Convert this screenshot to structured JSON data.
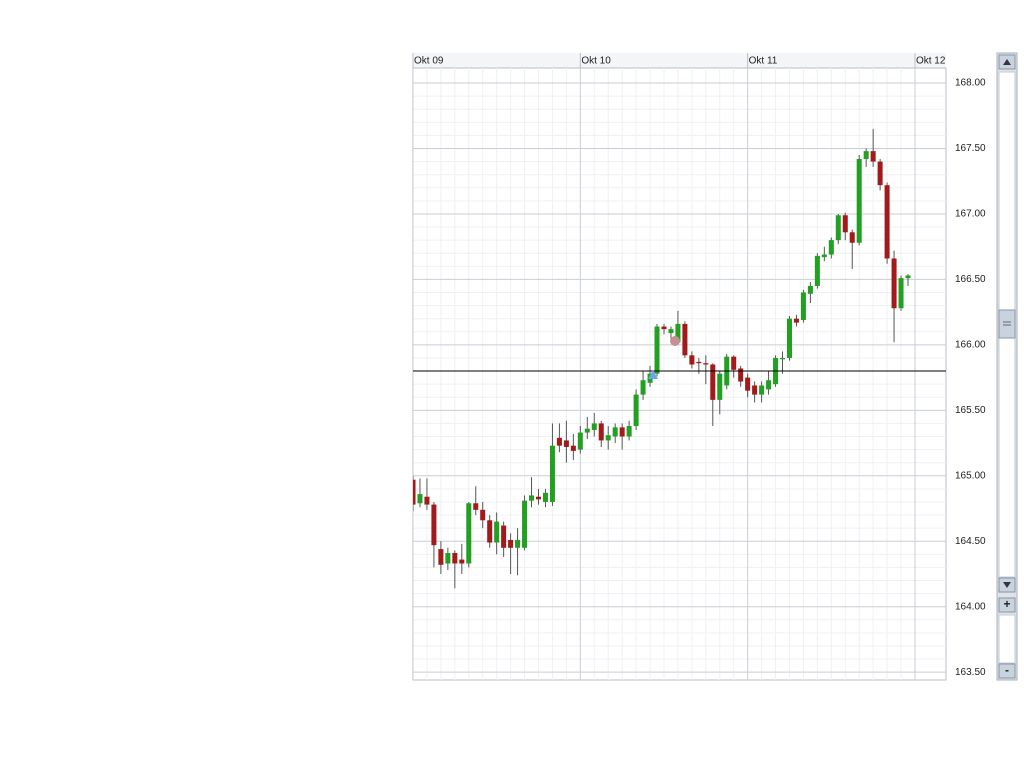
{
  "chart_data": {
    "type": "candlestick",
    "x": [
      0,
      1,
      2,
      3,
      4,
      5,
      6,
      7,
      8,
      9,
      10,
      11,
      12,
      13,
      14,
      15,
      16,
      17,
      18,
      19,
      20,
      21,
      22,
      23,
      24,
      25,
      26,
      27,
      28,
      29,
      30,
      31,
      32,
      33,
      34,
      35,
      36,
      37,
      38,
      39,
      40,
      41,
      42,
      43,
      44,
      45,
      46,
      47,
      48,
      49,
      50,
      51,
      52,
      53,
      54,
      55,
      56,
      57,
      58,
      59,
      60,
      61,
      62,
      63,
      64,
      65,
      66,
      67,
      68,
      69,
      70,
      71
    ],
    "xlim": [
      0,
      76.45
    ],
    "xticks": [
      {
        "value": 0,
        "label": "Okt 09"
      },
      {
        "value": 24,
        "label": "Okt 10"
      },
      {
        "value": 48,
        "label": "Okt 11"
      },
      {
        "value": 72,
        "label": "Okt 12"
      }
    ],
    "ylim": [
      163.44,
      168.115
    ],
    "yticks": [
      {
        "value": 163.5,
        "label": "163.50"
      },
      {
        "value": 164,
        "label": "164.00"
      },
      {
        "value": 164.5,
        "label": "164.50"
      },
      {
        "value": 165,
        "label": "165.00"
      },
      {
        "value": 165.5,
        "label": "165.50"
      },
      {
        "value": 166,
        "label": "166.00"
      },
      {
        "value": 166.5,
        "label": "166.50"
      },
      {
        "value": 167,
        "label": "167.00"
      },
      {
        "value": 167.5,
        "label": "167.50"
      },
      {
        "value": 168,
        "label": "168.00"
      }
    ],
    "grid": true,
    "up_color": "#22a022",
    "down_color": "#a31a1a",
    "hline": 165.8,
    "open": [
      164.97,
      164.79,
      164.84,
      164.78,
      164.44,
      164.33,
      164.41,
      164.36,
      164.33,
      164.79,
      164.74,
      164.66,
      164.49,
      164.62,
      164.51,
      164.45,
      164.45,
      164.81,
      164.84,
      164.8,
      164.8,
      165.29,
      165.27,
      165.23,
      165.2,
      165.33,
      165.35,
      165.4,
      165.27,
      165.3,
      165.37,
      165.3,
      165.38,
      165.62,
      165.71,
      165.78,
      166.14,
      166.09,
      166.02,
      166.16,
      165.92,
      165.87,
      165.86,
      165.85,
      165.58,
      165.69,
      165.91,
      165.82,
      165.75,
      165.69,
      165.62,
      165.66,
      165.7,
      165.89,
      165.9,
      166.2,
      166.19,
      166.39,
      166.45,
      166.67,
      166.69,
      166.8,
      166.99,
      166.86,
      166.78,
      167.42,
      167.48,
      167.4,
      167.22,
      166.66,
      166.28,
      166.51
    ],
    "high": [
      165.0,
      164.98,
      164.98,
      164.8,
      164.5,
      164.45,
      164.43,
      164.48,
      164.8,
      164.92,
      164.8,
      164.7,
      164.72,
      164.65,
      164.56,
      164.6,
      164.85,
      164.99,
      164.9,
      164.9,
      165.4,
      165.4,
      165.42,
      165.32,
      165.38,
      165.45,
      165.48,
      165.42,
      165.38,
      165.4,
      165.4,
      165.42,
      165.66,
      165.8,
      165.84,
      166.16,
      166.16,
      166.14,
      166.26,
      166.18,
      165.95,
      165.9,
      165.92,
      165.86,
      165.8,
      165.93,
      165.92,
      165.84,
      165.78,
      165.72,
      165.72,
      165.8,
      165.92,
      165.95,
      166.22,
      166.23,
      166.42,
      166.48,
      166.7,
      166.75,
      166.82,
      167.0,
      167.01,
      166.88,
      167.45,
      167.5,
      167.65,
      167.42,
      167.24,
      166.72,
      166.53,
      166.54
    ],
    "low": [
      164.73,
      164.76,
      164.74,
      164.3,
      164.25,
      164.28,
      164.14,
      164.25,
      164.3,
      164.7,
      164.6,
      164.45,
      164.4,
      164.38,
      164.25,
      164.24,
      164.43,
      164.76,
      164.78,
      164.76,
      164.77,
      165.18,
      165.1,
      165.12,
      165.17,
      165.28,
      165.3,
      165.22,
      165.2,
      165.25,
      165.2,
      165.27,
      165.35,
      165.58,
      165.68,
      165.76,
      166.08,
      166.02,
      166.0,
      165.9,
      165.82,
      165.78,
      165.7,
      165.38,
      165.47,
      165.66,
      165.75,
      165.68,
      165.6,
      165.56,
      165.56,
      165.62,
      165.68,
      165.78,
      165.88,
      166.14,
      166.17,
      166.32,
      166.43,
      166.64,
      166.66,
      166.77,
      166.8,
      166.58,
      166.76,
      167.36,
      167.36,
      167.18,
      166.62,
      166.02,
      166.26,
      166.45
    ],
    "close": [
      164.78,
      164.86,
      164.78,
      164.47,
      164.32,
      164.41,
      164.33,
      164.33,
      164.79,
      164.74,
      164.66,
      164.49,
      164.65,
      164.45,
      164.45,
      164.51,
      164.81,
      164.85,
      164.82,
      164.87,
      165.23,
      165.23,
      165.22,
      165.19,
      165.33,
      165.36,
      165.4,
      165.27,
      165.31,
      165.37,
      165.3,
      165.38,
      165.62,
      165.73,
      165.78,
      166.14,
      166.12,
      166.12,
      166.16,
      165.92,
      165.85,
      165.86,
      165.85,
      165.58,
      165.78,
      165.91,
      165.81,
      165.72,
      165.65,
      165.62,
      165.69,
      165.73,
      165.9,
      165.9,
      166.2,
      166.17,
      166.4,
      166.45,
      166.68,
      166.69,
      166.8,
      166.99,
      166.86,
      166.78,
      167.42,
      167.48,
      167.4,
      167.22,
      166.66,
      166.28,
      166.51,
      166.53
    ]
  }
}
